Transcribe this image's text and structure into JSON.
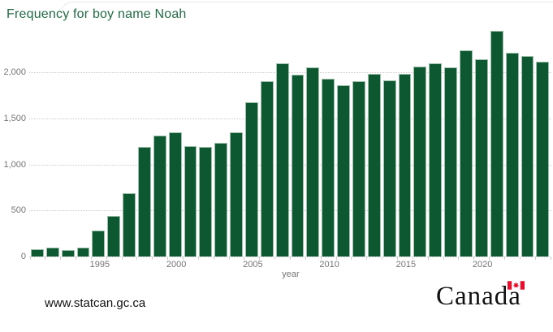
{
  "header": {
    "title": "Frequency for boy name Noah"
  },
  "chart_data": {
    "type": "bar",
    "title": "Frequency for boy name Noah",
    "xlabel": "year",
    "ylabel": "",
    "categories": [
      1991,
      1992,
      1993,
      1994,
      1995,
      1996,
      1997,
      1998,
      1999,
      2000,
      2001,
      2002,
      2003,
      2004,
      2005,
      2006,
      2007,
      2008,
      2009,
      2010,
      2011,
      2012,
      2013,
      2014,
      2015,
      2016,
      2017,
      2018,
      2019,
      2020,
      2021,
      2022,
      2023,
      2024
    ],
    "values": [
      80,
      95,
      75,
      100,
      285,
      445,
      685,
      1190,
      1320,
      1355,
      1200,
      1195,
      1240,
      1350,
      1675,
      1910,
      2100,
      1980,
      2060,
      1930,
      1865,
      1910,
      1985,
      1920,
      1985,
      2070,
      2105,
      2055,
      2240,
      2145,
      2455,
      2220,
      2185,
      2115
    ],
    "y_ticks": [
      0,
      500,
      1000,
      1500,
      2000
    ],
    "y_tick_labels": [
      "0",
      "500",
      "1,000",
      "1,500",
      "2,000"
    ],
    "x_tick_labels": [
      "1995",
      "2000",
      "2005",
      "2010",
      "2015",
      "2020"
    ],
    "x_tick_indices": [
      4,
      9,
      14,
      19,
      24,
      29
    ],
    "ylim": [
      0,
      2525
    ],
    "grid": "horizontal-dotted",
    "legend": "none",
    "bar_color": "#0d5830"
  },
  "colors": {
    "bar_fill": "#0d5830",
    "bar_edge": "#9dc0ab",
    "title_green": "#226b45",
    "axis_text": "#757575",
    "gridline": "#c9c9c9",
    "flag_red": "#e8112d",
    "footer_text": "#111111"
  },
  "footer": {
    "website": "www.statcan.gc.ca",
    "wordmark_text": "Canada",
    "wordmark_flag": "canada-flag-icon"
  }
}
